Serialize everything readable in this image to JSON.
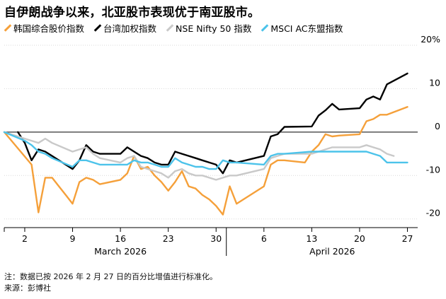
{
  "title": "自伊朗战争以来，北亚股市表现优于南亚股市。",
  "footer": {
    "note": "注：数据已按 2026 年 2 月 27 日的百分比增值进行标准化。",
    "source": "来源：彭博社"
  },
  "colors": {
    "kospi": "#f5a03a",
    "taiex": "#000000",
    "nifty": "#c9c9c9",
    "asean": "#4cc3ea",
    "axis": "#000000",
    "zero": "#333333"
  },
  "chart_data": {
    "type": "line",
    "title": "自伊朗战争以来，北亚股市表现优于南亚股市。",
    "x_unit": "trading day (day-of-year 2026)",
    "x_ticks": [
      {
        "day": 61,
        "label": "2"
      },
      {
        "day": 68,
        "label": "9"
      },
      {
        "day": 75,
        "label": "16"
      },
      {
        "day": 82,
        "label": "23"
      },
      {
        "day": 89,
        "label": "30"
      },
      {
        "day": 96,
        "label": "6"
      },
      {
        "day": 103,
        "label": "13"
      },
      {
        "day": 110,
        "label": "20"
      },
      {
        "day": 117,
        "label": "27"
      }
    ],
    "months": [
      {
        "label": "March 2026",
        "center_day": 75
      },
      {
        "label": "April 2026",
        "center_day": 106
      }
    ],
    "month_divider_day": 90.5,
    "xlim": [
      58,
      118.5
    ],
    "ylim": [
      -22,
      20
    ],
    "y_ticks": [
      {
        "value": 20,
        "label": "20%"
      },
      {
        "value": 10,
        "label": "10"
      },
      {
        "value": 0,
        "label": "0"
      },
      {
        "value": -10,
        "label": "-10"
      },
      {
        "value": -20,
        "label": "-20"
      }
    ],
    "series": [
      {
        "key": "kospi",
        "name": "韩国综合股价指数",
        "x": [
          58,
          62,
          63,
          64,
          65,
          66,
          67,
          68,
          69,
          70,
          71,
          72,
          75,
          76,
          77,
          78,
          79,
          80,
          81,
          82,
          83,
          84,
          85,
          86,
          87,
          88,
          89,
          90,
          91,
          92,
          96,
          97,
          98,
          99,
          102,
          103,
          104,
          105,
          106,
          107,
          110,
          111,
          112,
          113,
          114,
          117
        ],
        "y": [
          0,
          -7.5,
          -18.5,
          -10.5,
          -10.5,
          -12.5,
          -14.5,
          -16.5,
          -11.5,
          -10.5,
          -11,
          -12,
          -11,
          -9.5,
          -5.5,
          -8.5,
          -8,
          -10,
          -11.5,
          -13.5,
          -11.5,
          -9,
          -12.5,
          -13,
          -14.5,
          -15.5,
          -17,
          -19,
          -12.5,
          -16.5,
          -12.5,
          -7.5,
          -6.5,
          -6.5,
          -7,
          -4.5,
          -3,
          -0.5,
          -1,
          -0.8,
          -0.5,
          2.5,
          3.0,
          4.0,
          4.0,
          5.8
        ]
      },
      {
        "key": "taiex",
        "name": "台湾加权指数",
        "x": [
          60,
          61,
          62,
          63,
          64,
          65,
          68,
          69,
          70,
          71,
          72,
          75,
          76,
          77,
          78,
          79,
          80,
          81,
          82,
          83,
          84,
          85,
          86,
          87,
          88,
          89,
          90,
          91,
          92,
          96,
          97,
          98,
          99,
          103,
          104,
          105,
          106,
          107,
          110,
          111,
          112,
          113,
          114,
          117
        ],
        "y": [
          0,
          -2.5,
          -6.5,
          -4,
          -4.5,
          -5.5,
          -8.5,
          -6.5,
          -3,
          -4.5,
          -5,
          -5,
          -3.5,
          -4.5,
          -5.5,
          -6,
          -7,
          -7.5,
          -7.5,
          -4.5,
          -5,
          -5.5,
          -6,
          -6.5,
          -7,
          -7.5,
          -9.5,
          -6.5,
          -7,
          -5.5,
          -1,
          -0.5,
          1.2,
          1.3,
          3.8,
          5,
          6.5,
          5.2,
          5.5,
          7.5,
          8.2,
          7.5,
          11,
          13.5
        ]
      },
      {
        "key": "nifty",
        "name": "NSE Nifty 50 指数",
        "x": [
          58,
          61,
          62,
          63,
          64,
          65,
          68,
          69,
          70,
          71,
          72,
          75,
          76,
          77,
          78,
          79,
          80,
          81,
          82,
          83,
          84,
          85,
          86,
          87,
          88,
          89,
          90,
          91,
          92,
          96,
          97,
          98,
          99,
          103,
          104,
          105,
          106,
          107,
          110,
          111,
          112,
          113,
          114,
          115
        ],
        "y": [
          0,
          -1.5,
          -2,
          -2.5,
          -1.5,
          -2.5,
          -4.5,
          -4,
          -3.5,
          -5,
          -6,
          -7,
          -6,
          -5.5,
          -8,
          -8.5,
          -9,
          -9.5,
          -10.5,
          -9,
          -8.5,
          -9.5,
          -10,
          -10,
          -10.5,
          -11,
          -10.5,
          -10,
          -10,
          -8.5,
          -6,
          -5.5,
          -5,
          -5,
          -4.5,
          -4,
          -3.5,
          -3.5,
          -3.5,
          -3,
          -3.5,
          -4,
          -5,
          -5.5
        ]
      },
      {
        "key": "asean",
        "name": "MSCI AC东盟指数",
        "x": [
          58,
          61,
          62,
          63,
          64,
          65,
          68,
          69,
          70,
          71,
          72,
          75,
          76,
          77,
          78,
          79,
          80,
          81,
          82,
          83,
          84,
          85,
          86,
          87,
          88,
          89,
          90,
          91,
          92,
          96,
          97,
          98,
          99,
          103,
          104,
          105,
          106,
          107,
          110,
          111,
          112,
          113,
          114,
          117
        ],
        "y": [
          0,
          -2,
          -3,
          -4.5,
          -5,
          -6,
          -8,
          -6.5,
          -6.5,
          -7,
          -7.5,
          -7.5,
          -7.5,
          -6.5,
          -7,
          -7,
          -7.5,
          -8,
          -8,
          -6,
          -7,
          -7.5,
          -8,
          -8,
          -8.5,
          -8.5,
          -6.5,
          -7,
          -7,
          -7.5,
          -5.5,
          -5,
          -5,
          -4.5,
          -4.5,
          -4.5,
          -4.5,
          -4.5,
          -4.5,
          -4.5,
          -5,
          -5.5,
          -7,
          -7
        ]
      }
    ]
  }
}
